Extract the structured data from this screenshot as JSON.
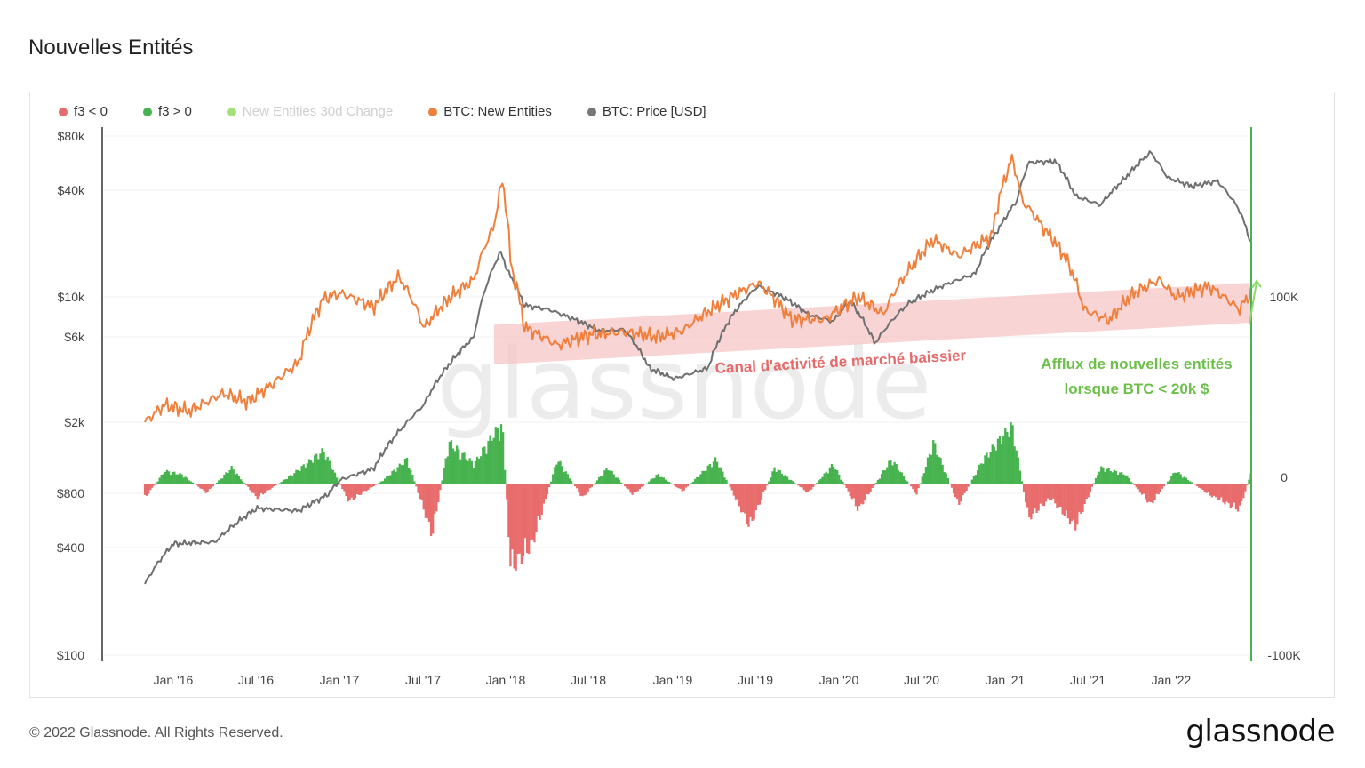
{
  "page": {
    "title": "Nouvelles Entités",
    "footer": "© 2022 Glassnode. All Rights Reserved.",
    "logo": "glassnode",
    "watermark": "glassnode"
  },
  "legend": [
    {
      "label": "f3 < 0",
      "color": "#e96c6c",
      "muted": false
    },
    {
      "label": "f3 > 0",
      "color": "#47b34f",
      "muted": false
    },
    {
      "label": "New Entities 30d Change",
      "color": "#a6df7b",
      "muted": true
    },
    {
      "label": "BTC: New Entities",
      "color": "#f07f3c",
      "muted": false
    },
    {
      "label": "BTC: Price [USD]",
      "color": "#777777",
      "muted": false
    }
  ],
  "annotations": {
    "channel": "Canal d'activité de marché baissier",
    "inflow_line1": "Afflux de nouvelles entités",
    "inflow_line2": "lorsque BTC < 20k $"
  },
  "colors": {
    "price": "#6f6f6f",
    "entities": "#f07f3c",
    "positive": "#47b34f",
    "negative": "#e96c6c",
    "channel": "#f6c6c6",
    "channel_text": "#e56a6a",
    "inflow_text": "#6cc04a",
    "axis_right": "#47b34f"
  },
  "chart_data": {
    "type": "line",
    "x_ticks": [
      "Jan '16",
      "Jul '16",
      "Jan '17",
      "Jul '17",
      "Jan '18",
      "Jul '18",
      "Jan '19",
      "Jul '19",
      "Jan '20",
      "Jul '20",
      "Jan '21",
      "Jul '21",
      "Jan '22"
    ],
    "y_left_ticks": [
      "$80k",
      "$40k",
      "$10k",
      "$6k",
      "$2k",
      "$800",
      "$400",
      "$100"
    ],
    "y_right_ticks": [
      "100K",
      "0",
      "-100K"
    ],
    "y_left_scale": "log",
    "y_left_range": [
      100,
      80000
    ],
    "y_right_range": [
      -100000,
      100000
    ],
    "series": [
      {
        "name": "BTC: Price [USD]",
        "axis": "left",
        "points": [
          [
            2015.83,
            250
          ],
          [
            2016.0,
            420
          ],
          [
            2016.25,
            430
          ],
          [
            2016.5,
            660
          ],
          [
            2016.75,
            640
          ],
          [
            2016.92,
            780
          ],
          [
            2017.0,
            950
          ],
          [
            2017.2,
            1100
          ],
          [
            2017.4,
            2000
          ],
          [
            2017.5,
            2500
          ],
          [
            2017.65,
            4200
          ],
          [
            2017.8,
            6000
          ],
          [
            2017.92,
            15000
          ],
          [
            2017.96,
            18000
          ],
          [
            2018.0,
            14000
          ],
          [
            2018.1,
            9000
          ],
          [
            2018.25,
            8500
          ],
          [
            2018.4,
            7500
          ],
          [
            2018.55,
            6500
          ],
          [
            2018.7,
            6600
          ],
          [
            2018.85,
            4000
          ],
          [
            2019.0,
            3500
          ],
          [
            2019.2,
            4000
          ],
          [
            2019.35,
            8000
          ],
          [
            2019.5,
            11500
          ],
          [
            2019.65,
            10000
          ],
          [
            2019.8,
            8000
          ],
          [
            2019.95,
            7300
          ],
          [
            2020.05,
            9500
          ],
          [
            2020.2,
            5500
          ],
          [
            2020.4,
            9200
          ],
          [
            2020.6,
            11500
          ],
          [
            2020.8,
            13500
          ],
          [
            2020.95,
            25000
          ],
          [
            2021.05,
            35000
          ],
          [
            2021.12,
            57000
          ],
          [
            2021.28,
            58000
          ],
          [
            2021.4,
            37000
          ],
          [
            2021.55,
            33000
          ],
          [
            2021.7,
            47000
          ],
          [
            2021.85,
            65000
          ],
          [
            2021.95,
            47000
          ],
          [
            2022.1,
            42000
          ],
          [
            2022.25,
            45000
          ],
          [
            2022.38,
            31000
          ],
          [
            2022.45,
            20000
          ]
        ]
      },
      {
        "name": "BTC: New Entities",
        "axis": "left",
        "points": [
          [
            2015.83,
            2000
          ],
          [
            2015.95,
            2500
          ],
          [
            2016.1,
            2300
          ],
          [
            2016.3,
            2900
          ],
          [
            2016.45,
            2600
          ],
          [
            2016.6,
            3300
          ],
          [
            2016.75,
            4300
          ],
          [
            2016.9,
            9800
          ],
          [
            2017.0,
            10500
          ],
          [
            2017.2,
            8800
          ],
          [
            2017.35,
            13000
          ],
          [
            2017.5,
            6700
          ],
          [
            2017.65,
            9800
          ],
          [
            2017.8,
            12500
          ],
          [
            2017.92,
            25000
          ],
          [
            2017.97,
            45000
          ],
          [
            2018.02,
            15000
          ],
          [
            2018.1,
            6800
          ],
          [
            2018.3,
            5400
          ],
          [
            2018.5,
            6200
          ],
          [
            2018.7,
            6400
          ],
          [
            2018.9,
            6000
          ],
          [
            2019.05,
            6500
          ],
          [
            2019.3,
            9500
          ],
          [
            2019.5,
            12000
          ],
          [
            2019.7,
            7500
          ],
          [
            2019.9,
            7500
          ],
          [
            2020.1,
            10000
          ],
          [
            2020.25,
            8000
          ],
          [
            2020.4,
            14000
          ],
          [
            2020.55,
            21000
          ],
          [
            2020.7,
            17000
          ],
          [
            2020.9,
            22000
          ],
          [
            2021.02,
            60000
          ],
          [
            2021.08,
            35000
          ],
          [
            2021.2,
            25000
          ],
          [
            2021.35,
            16000
          ],
          [
            2021.45,
            8500
          ],
          [
            2021.6,
            7400
          ],
          [
            2021.75,
            10500
          ],
          [
            2021.9,
            12500
          ],
          [
            2022.0,
            10000
          ],
          [
            2022.2,
            11500
          ],
          [
            2022.38,
            8500
          ],
          [
            2022.45,
            10500
          ]
        ]
      },
      {
        "name": "New Entities 30d Change",
        "axis": "right",
        "points": [
          [
            2015.83,
            -8000
          ],
          [
            2015.95,
            8000
          ],
          [
            2016.05,
            6000
          ],
          [
            2016.2,
            -5000
          ],
          [
            2016.35,
            10000
          ],
          [
            2016.5,
            -8000
          ],
          [
            2016.7,
            5000
          ],
          [
            2016.9,
            20000
          ],
          [
            2017.05,
            -10000
          ],
          [
            2017.25,
            2000
          ],
          [
            2017.4,
            15000
          ],
          [
            2017.55,
            -30000
          ],
          [
            2017.65,
            25000
          ],
          [
            2017.8,
            12000
          ],
          [
            2017.92,
            30000
          ],
          [
            2017.97,
            35000
          ],
          [
            2018.02,
            -50000
          ],
          [
            2018.15,
            -35000
          ],
          [
            2018.3,
            15000
          ],
          [
            2018.45,
            -8000
          ],
          [
            2018.6,
            10000
          ],
          [
            2018.75,
            -6000
          ],
          [
            2018.9,
            6000
          ],
          [
            2019.05,
            -4000
          ],
          [
            2019.25,
            15000
          ],
          [
            2019.45,
            -25000
          ],
          [
            2019.6,
            10000
          ],
          [
            2019.8,
            -5000
          ],
          [
            2019.95,
            12000
          ],
          [
            2020.1,
            -15000
          ],
          [
            2020.3,
            15000
          ],
          [
            2020.45,
            -6000
          ],
          [
            2020.55,
            25000
          ],
          [
            2020.7,
            -12000
          ],
          [
            2020.85,
            15000
          ],
          [
            2021.02,
            35000
          ],
          [
            2021.12,
            -20000
          ],
          [
            2021.25,
            -8000
          ],
          [
            2021.4,
            -25000
          ],
          [
            2021.55,
            10000
          ],
          [
            2021.7,
            6000
          ],
          [
            2021.85,
            -12000
          ],
          [
            2022.0,
            8000
          ],
          [
            2022.2,
            -6000
          ],
          [
            2022.38,
            -15000
          ],
          [
            2022.45,
            6000
          ]
        ]
      }
    ],
    "annotations": [
      {
        "text": "Canal d'activité de marché baissier",
        "kind": "channel",
        "x_from": 2018.0,
        "x_to": 2022.45,
        "y_from_low": 4200,
        "y_from_high": 7000,
        "y_to_low": 7200,
        "y_to_high": 12000
      },
      {
        "text": "Afflux de nouvelles entités lorsque BTC < 20k $",
        "kind": "label",
        "x": 2022.1
      }
    ]
  }
}
